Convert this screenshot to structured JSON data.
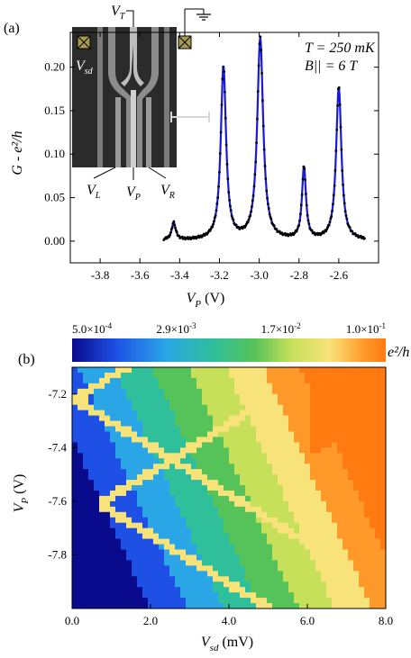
{
  "chart_data": [
    {
      "panel": "(a)",
      "type": "line",
      "xlabel_sym": "V",
      "xlabel_sub": "P",
      "xlabel_unit": "(V)",
      "ylabel": "G - e²/h",
      "xlim": [
        -3.95,
        -2.4
      ],
      "ylim": [
        -0.025,
        0.24
      ],
      "xticks": [
        "-3.8",
        "-3.6",
        "-3.4",
        "-3.2",
        "-3.0",
        "-2.8",
        "-2.6"
      ],
      "xtick_values": [
        -3.8,
        -3.6,
        -3.4,
        -3.2,
        -3.0,
        -2.8,
        -2.6
      ],
      "yticks": [
        "0.00",
        "0.05",
        "0.10",
        "0.15",
        "0.20"
      ],
      "ytick_values": [
        0.0,
        0.05,
        0.1,
        0.15,
        0.2
      ],
      "temperature_label": "T = 250 mK",
      "field_label": "B|| = 6 T",
      "series": [
        {
          "peaks": [
            {
              "x": -3.43,
              "height": 0.02,
              "width": 0.012
            },
            {
              "x": -3.18,
              "height": 0.199,
              "width": 0.016
            },
            {
              "x": -2.995,
              "height": 0.232,
              "width": 0.018
            },
            {
              "x": -2.775,
              "height": 0.083,
              "width": 0.012
            },
            {
              "x": -2.6,
              "height": 0.176,
              "width": 0.016
            }
          ],
          "x_start": -3.48,
          "x_end": -2.47
        }
      ],
      "inset_labels": {
        "top_gate": "V",
        "top_gate_sub": "T",
        "source_drain": "V",
        "source_drain_sub": "sd",
        "left_gate": "V",
        "left_gate_sub": "L",
        "plunger": "V",
        "plunger_sub": "P",
        "right_gate": "V",
        "right_gate_sub": "R"
      }
    },
    {
      "panel": "(b)",
      "type": "heatmap",
      "xlabel_sym": "V",
      "xlabel_sub": "sd",
      "xlabel_unit": "(mV)",
      "ylabel_sym": "V",
      "ylabel_sub": "P",
      "ylabel_unit": "(V)",
      "xlim": [
        0.0,
        8.0
      ],
      "ylim": [
        -8.0,
        -7.1
      ],
      "xticks": [
        "0.0",
        "2.0",
        "4.0",
        "6.0",
        "8.0"
      ],
      "xtick_values": [
        0.0,
        2.0,
        4.0,
        6.0,
        8.0
      ],
      "yticks": [
        "-7.2",
        "-7.4",
        "-7.6",
        "-7.8"
      ],
      "ytick_values": [
        -7.2,
        -7.4,
        -7.6,
        -7.8
      ],
      "colorbar_ticks": [
        {
          "mant": "5.0×10",
          "exp": "-4",
          "value": 0.0005
        },
        {
          "mant": "2.9×10",
          "exp": "-3",
          "value": 0.0029
        },
        {
          "mant": "1.7×10",
          "exp": "-2",
          "value": 0.017
        },
        {
          "mant": "1.0×10",
          "exp": "-1",
          "value": 0.1
        }
      ],
      "colorbar_unit": "e²/h",
      "diamonds": [
        {
          "vertex_vp": -7.22,
          "vertex_vsd": 0.05,
          "slope_up": 0.09,
          "slope_down": 0.09
        },
        {
          "vertex_vp": -7.61,
          "vertex_vsd": 0.7,
          "slope_up": 0.09,
          "slope_down": 0.09
        }
      ],
      "colorscale": [
        "#0a0a8c",
        "#1f50e6",
        "#2aa6e6",
        "#2fbf9a",
        "#56c25a",
        "#c6e05a",
        "#f8e37a",
        "#ff9a2a",
        "#ff7a10"
      ]
    }
  ],
  "panel_a_label": "(a)",
  "panel_b_label": "(b)"
}
